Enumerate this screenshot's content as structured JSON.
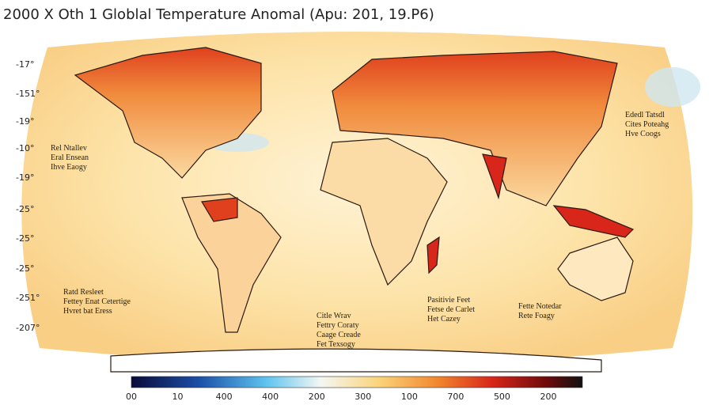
{
  "title": "2000 X Oth 1 Globlal Temperature Anomal (Apu: 201, 19.P6)",
  "lat_labels": [
    "-17°",
    "-151°",
    "-19°",
    "-10°",
    "-19°",
    "-25°",
    "-25°",
    "-25°",
    "-251°",
    "-207°"
  ],
  "annotations": [
    {
      "lines": [
        "Rel Ntallev",
        "Eral Ensean",
        "Ihve Eaogy"
      ]
    },
    {
      "lines": [
        "Ratd Resleet",
        "Fettey Enat Cetertige",
        "Hvret bat Eress"
      ]
    },
    {
      "lines": [
        "Citle Wrav",
        "Fettry Coraty",
        "Caage Creade",
        "Fet Texsogy"
      ]
    },
    {
      "lines": [
        "Pasitivie Feet",
        "Fetse de Carlet",
        "Het Cazey"
      ]
    },
    {
      "lines": [
        "Fette Notedar",
        "Rete Foagy"
      ]
    },
    {
      "lines": [
        "Ededl Tatsdl",
        "Cites Poteahg",
        "Hve Coogs"
      ]
    }
  ],
  "colorbar_labels": [
    "00",
    "10",
    "400",
    "400",
    "200",
    "300",
    "100",
    "700",
    "500",
    "200"
  ]
}
